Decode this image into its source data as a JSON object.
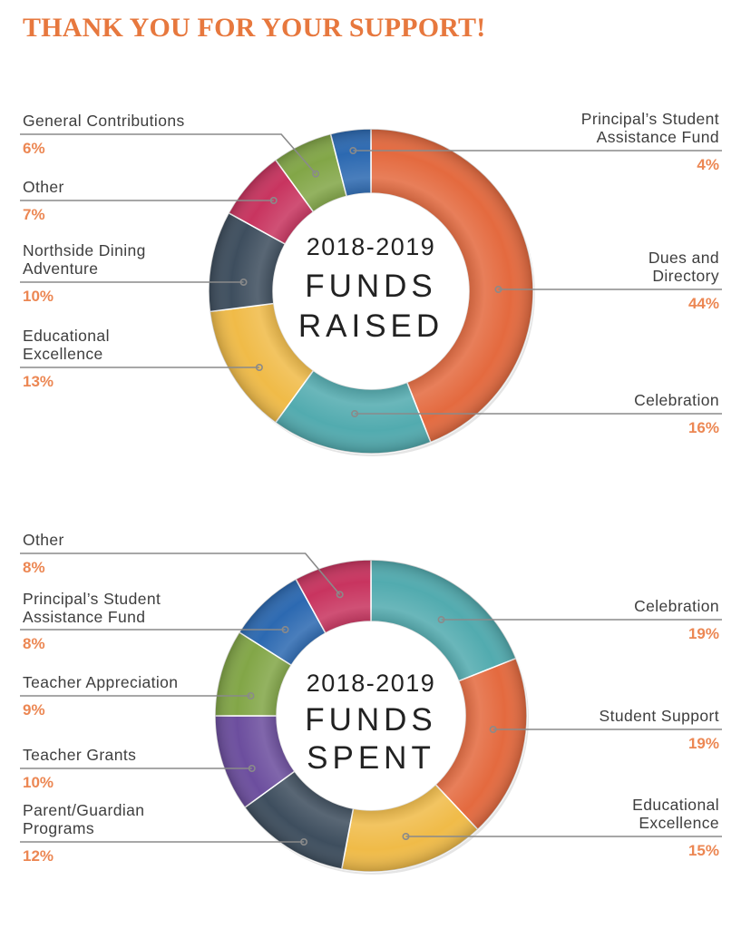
{
  "headline": "THANK YOU FOR YOUR SUPPORT!",
  "chart_data": [
    {
      "type": "pie",
      "title_lines": [
        "2018-2019",
        "FUNDS",
        "RAISED"
      ],
      "slices": [
        {
          "label_lines": [
            "Dues and",
            "Directory"
          ],
          "value": 44,
          "pct_label": "44%",
          "color": "#e46a3f"
        },
        {
          "label_lines": [
            "Celebration"
          ],
          "value": 16,
          "pct_label": "16%",
          "color": "#52abaf"
        },
        {
          "label_lines": [
            "Educational",
            "Excellence"
          ],
          "value": 13,
          "pct_label": "13%",
          "color": "#f0bb48"
        },
        {
          "label_lines": [
            "Northside Dining",
            "Adventure"
          ],
          "value": 10,
          "pct_label": "10%",
          "color": "#3e4e5e"
        },
        {
          "label_lines": [
            "Other"
          ],
          "value": 7,
          "pct_label": "7%",
          "color": "#c8345f"
        },
        {
          "label_lines": [
            "General Contributions"
          ],
          "value": 6,
          "pct_label": "6%",
          "color": "#82a647"
        },
        {
          "label_lines": [
            "Principal’s Student",
            "Assistance Fund"
          ],
          "value": 4,
          "pct_label": "4%",
          "color": "#2c69b1"
        }
      ]
    },
    {
      "type": "pie",
      "title_lines": [
        "2018-2019",
        "FUNDS",
        "SPENT"
      ],
      "slices": [
        {
          "label_lines": [
            "Celebration"
          ],
          "value": 19,
          "pct_label": "19%",
          "color": "#52abaf"
        },
        {
          "label_lines": [
            "Student Support"
          ],
          "value": 19,
          "pct_label": "19%",
          "color": "#e46a3f"
        },
        {
          "label_lines": [
            "Educational",
            "Excellence"
          ],
          "value": 15,
          "pct_label": "15%",
          "color": "#f0bb48"
        },
        {
          "label_lines": [
            "Parent/Guardian",
            "Programs"
          ],
          "value": 12,
          "pct_label": "12%",
          "color": "#3e4e5e"
        },
        {
          "label_lines": [
            "Teacher Grants"
          ],
          "value": 10,
          "pct_label": "10%",
          "color": "#6c4e9e"
        },
        {
          "label_lines": [
            "Teacher Appreciation"
          ],
          "value": 9,
          "pct_label": "9%",
          "color": "#82a647"
        },
        {
          "label_lines": [
            "Principal’s Student",
            "Assistance Fund"
          ],
          "value": 8,
          "pct_label": "8%",
          "color": "#2c69b1"
        },
        {
          "label_lines": [
            "Other"
          ],
          "value": 8,
          "pct_label": "8%",
          "color": "#c8345f"
        }
      ]
    }
  ]
}
